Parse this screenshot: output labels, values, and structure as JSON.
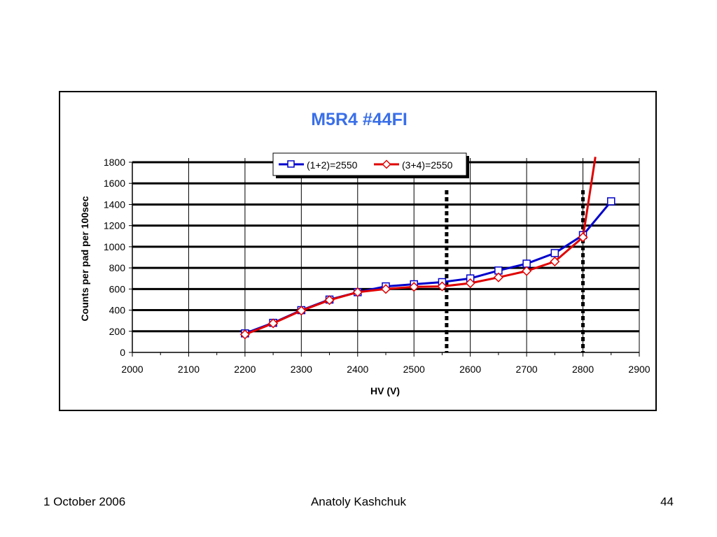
{
  "footer": {
    "date": "1 October 2006",
    "author": "Anatoly Kashchuk",
    "page": "44"
  },
  "chart_data": {
    "type": "line",
    "title": "M5R4 #44FI",
    "xlabel": "HV (V)",
    "ylabel": "Counts  per pad per 100sec",
    "xlim": [
      2000,
      2900
    ],
    "ylim": [
      0,
      1800
    ],
    "x_ticks": [
      2000,
      2100,
      2200,
      2300,
      2400,
      2500,
      2600,
      2700,
      2800,
      2900
    ],
    "y_ticks": [
      0,
      200,
      400,
      600,
      800,
      1000,
      1200,
      1400,
      1600,
      1800
    ],
    "grid": true,
    "legend_position": "top-center",
    "title_color": "#3a6fe8",
    "series": [
      {
        "name": "(1+2)=2550",
        "color": "#0000cc",
        "marker": "square",
        "x": [
          2200,
          2250,
          2300,
          2350,
          2400,
          2450,
          2500,
          2550,
          2600,
          2650,
          2700,
          2750,
          2800,
          2850
        ],
        "y": [
          180,
          280,
          400,
          500,
          570,
          625,
          645,
          665,
          700,
          775,
          840,
          940,
          1110,
          1430
        ]
      },
      {
        "name": "(3+4)=2550",
        "color": "#e00000",
        "marker": "diamond",
        "x": [
          2200,
          2250,
          2300,
          2350,
          2400,
          2450,
          2500,
          2550,
          2600,
          2650,
          2700,
          2750,
          2800,
          2822
        ],
        "y": [
          170,
          275,
          395,
          495,
          570,
          600,
          620,
          625,
          655,
          710,
          770,
          860,
          1090,
          1850
        ],
        "marker_count": 13
      }
    ],
    "vertical_markers": [
      2558,
      2800
    ]
  }
}
